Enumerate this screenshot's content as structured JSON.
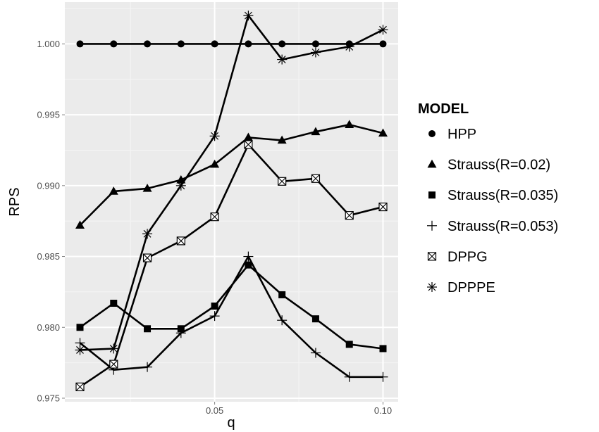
{
  "chart_data": {
    "type": "line",
    "xlabel": "q",
    "ylabel": "RPS",
    "x": [
      0.01,
      0.02,
      0.03,
      0.04,
      0.05,
      0.06,
      0.07,
      0.08,
      0.09,
      0.1
    ],
    "xlim": [
      0.0055,
      0.1045
    ],
    "ylim": [
      0.97475,
      1.00295
    ],
    "xticks": [
      0.05,
      0.1
    ],
    "xtick_labels": [
      "0.05",
      "0.10"
    ],
    "xminor": [
      0.025,
      0.075
    ],
    "yticks": [
      0.975,
      0.98,
      0.985,
      0.99,
      0.995,
      1.0
    ],
    "ytick_labels": [
      "0.975",
      "0.980",
      "0.985",
      "0.990",
      "0.995",
      "1.000"
    ],
    "yminor": [
      0.9775,
      0.9825,
      0.9875,
      0.9925,
      0.9975,
      1.0025
    ],
    "grid": true,
    "panel_background": "#ebebeb",
    "line_color": "#000000",
    "legend": {
      "title": "MODEL",
      "position": "right"
    },
    "series": [
      {
        "name": "HPP",
        "marker": "circle",
        "values": [
          1.0,
          1.0,
          1.0,
          1.0,
          1.0,
          1.0,
          1.0,
          1.0,
          1.0,
          1.0
        ]
      },
      {
        "name": "Strauss(R=0.02)",
        "marker": "triangle",
        "values": [
          0.9872,
          0.9896,
          0.9898,
          0.9904,
          0.9915,
          0.9934,
          0.9932,
          0.9938,
          0.9943,
          0.9937
        ]
      },
      {
        "name": "Strauss(R=0.035)",
        "marker": "square",
        "values": [
          0.98,
          0.9817,
          0.9799,
          0.9799,
          0.9815,
          0.9844,
          0.9823,
          0.9806,
          0.9788,
          0.9785
        ]
      },
      {
        "name": "Strauss(R=0.053)",
        "marker": "plus",
        "values": [
          0.9789,
          0.977,
          0.9772,
          0.9796,
          0.9808,
          0.985,
          0.9805,
          0.9782,
          0.9765,
          0.9765
        ]
      },
      {
        "name": "DPPG",
        "marker": "boxcross",
        "values": [
          0.9758,
          0.9774,
          0.9849,
          0.9861,
          0.9878,
          0.9929,
          0.9903,
          0.9905,
          0.9879,
          0.9885
        ]
      },
      {
        "name": "DPPPE",
        "marker": "asterisk",
        "values": [
          0.9784,
          0.9785,
          0.9866,
          0.99,
          0.9935,
          1.002,
          0.9989,
          0.9994,
          0.9998,
          1.001
        ]
      }
    ]
  }
}
